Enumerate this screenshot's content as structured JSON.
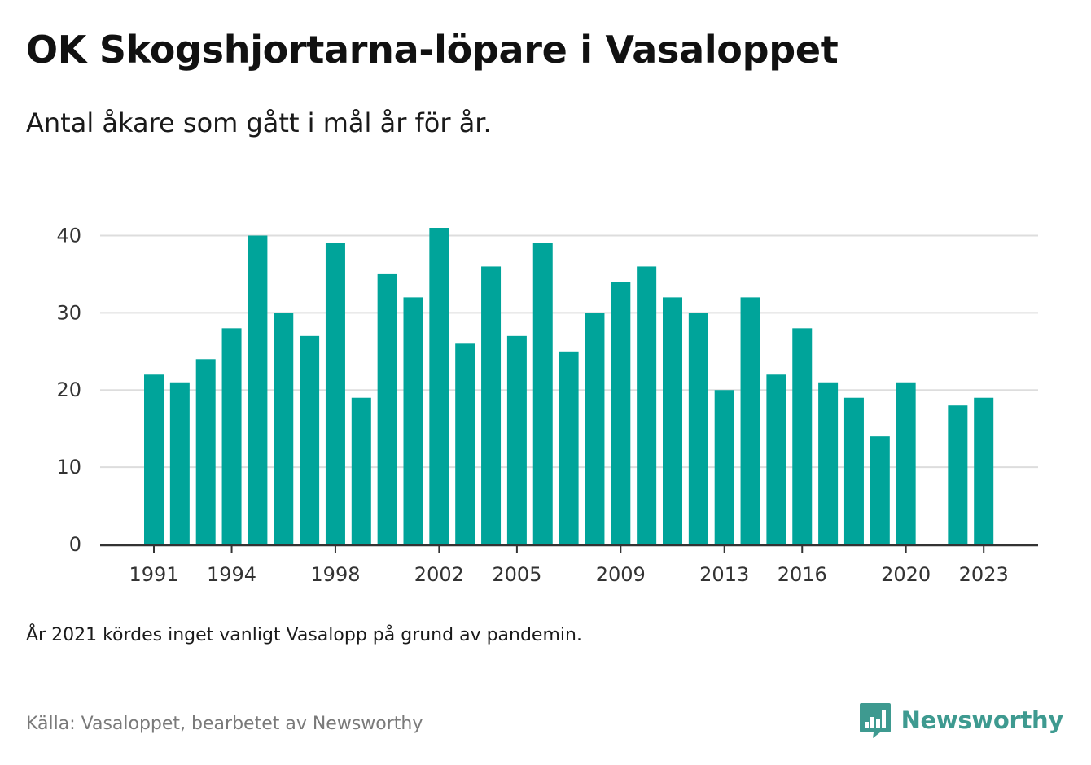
{
  "header": {
    "title": "OK Skogshjortarna-löpare i Vasaloppet",
    "subtitle": "Antal åkare som gått i mål år för år."
  },
  "footer": {
    "note": "År 2021 kördes inget vanligt Vasalopp på grund av pandemin.",
    "source": "Källa: Vasaloppet, bearbetet av Newsworthy",
    "brand": "Newsworthy",
    "brand_icon": "bar-chart-speech-bubble-icon"
  },
  "colors": {
    "bar": "#00a49a",
    "grid": "#dddddd",
    "axis": "#333333",
    "brand": "#3e9a90"
  },
  "chart_data": {
    "type": "bar",
    "x": [
      1991,
      1992,
      1993,
      1994,
      1995,
      1996,
      1997,
      1998,
      1999,
      2000,
      2001,
      2002,
      2003,
      2004,
      2005,
      2006,
      2007,
      2008,
      2009,
      2010,
      2011,
      2012,
      2013,
      2014,
      2015,
      2016,
      2017,
      2018,
      2019,
      2020,
      2021,
      2022,
      2023
    ],
    "values": [
      22,
      21,
      24,
      28,
      40,
      30,
      27,
      39,
      19,
      35,
      32,
      41,
      26,
      36,
      27,
      39,
      25,
      30,
      34,
      36,
      32,
      30,
      20,
      32,
      22,
      28,
      21,
      19,
      14,
      21,
      null,
      18,
      19
    ],
    "x_ticks": [
      "1991",
      "1994",
      "1998",
      "2002",
      "2005",
      "2009",
      "2013",
      "2016",
      "2020",
      "2023"
    ],
    "y_ticks": [
      "0",
      "10",
      "20",
      "30",
      "40"
    ],
    "ylim": [
      0,
      41
    ],
    "grid": true,
    "legend": "none"
  }
}
